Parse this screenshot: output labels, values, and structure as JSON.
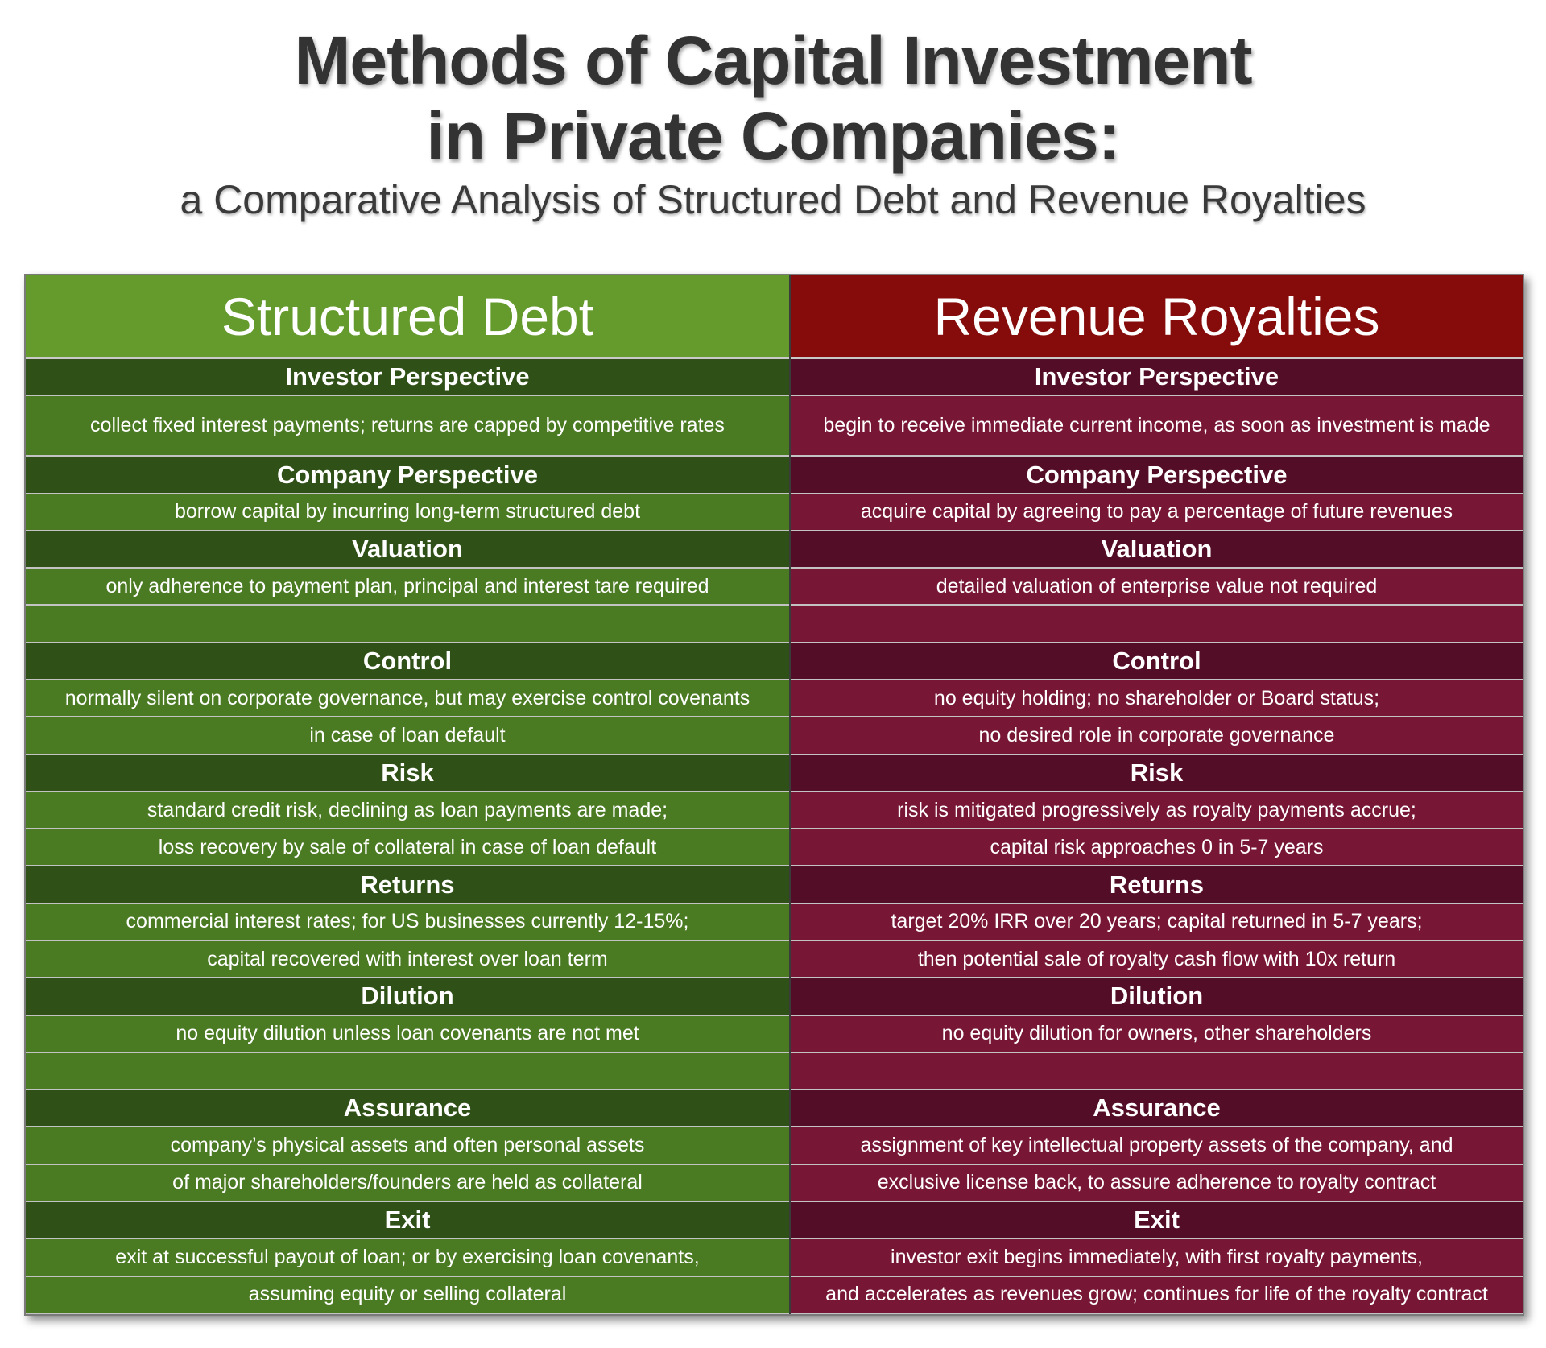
{
  "title": {
    "line1": "Methods of Capital Investment",
    "line2": "in Private Companies:",
    "subtitle": "a Comparative Analysis of Structured Debt and Revenue Royalties"
  },
  "colors": {
    "debt_header": "#659a2c",
    "debt_section": "#2f5017",
    "debt_body": "#4a7a22",
    "royalty_header": "#860c0c",
    "royalty_section": "#540d26",
    "royalty_body": "#781635"
  },
  "columns": [
    {
      "heading": "Structured Debt",
      "rows": [
        "Investor Perspective",
        "collect fixed interest payments; returns are capped by competitive rates",
        "Company Perspective",
        "borrow capital by incurring long-term structured debt",
        "Valuation",
        "only adherence to payment plan, principal and interest tare required",
        "",
        "Control",
        "normally silent on corporate governance, but may exercise control covenants",
        "in case of loan default",
        "Risk",
        "standard credit risk, declining as loan payments are made;",
        "loss recovery by sale of collateral in case of loan default",
        "Returns",
        "commercial interest rates; for US businesses currently 12-15%;",
        "capital recovered with interest over loan term",
        "Dilution",
        "no equity dilution unless loan covenants are not met",
        "",
        "Assurance",
        "company’s physical assets and often personal assets",
        "of major shareholders/founders are held as collateral",
        "Exit",
        "exit at successful payout of loan; or by exercising loan covenants,",
        "assuming equity or selling collateral"
      ]
    },
    {
      "heading": "Revenue Royalties",
      "rows": [
        "Investor Perspective",
        "begin to receive immediate current income, as soon as investment is made",
        "Company Perspective",
        "acquire capital by agreeing to pay a percentage of future revenues",
        "Valuation",
        "detailed valuation of enterprise value not required",
        "",
        "Control",
        "no equity holding; no shareholder or Board status;",
        "no desired role in corporate governance",
        "Risk",
        "risk is mitigated progressively as royalty payments accrue;",
        "capital risk approaches 0 in 5-7 years",
        "Returns",
        "target 20% IRR over 20 years; capital returned in 5-7 years;",
        "then potential sale of royalty cash flow with 10x return",
        "Dilution",
        "no equity dilution for owners, other shareholders",
        "",
        "Assurance",
        "assignment of key intellectual property assets of the company, and",
        "exclusive license back, to assure adherence to royalty contract",
        "Exit",
        "investor exit begins immediately, with first royalty payments,",
        "and accelerates as revenues grow; continues for life of the royalty contract"
      ]
    }
  ]
}
